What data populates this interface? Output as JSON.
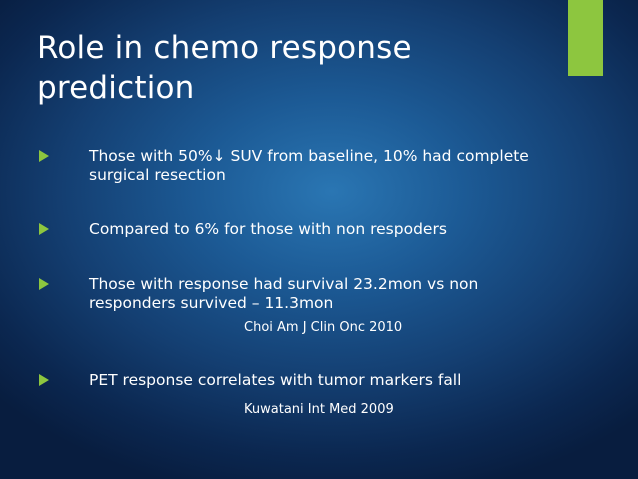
{
  "slide": {
    "title": "Role in chemo response prediction",
    "accent_color": "#8dc63f",
    "bullet_icon": "green-triangle-arrow-icon",
    "bullets": [
      {
        "text": "Those with 50%↓ SUV from baseline, 10% had complete surgical resection"
      },
      {
        "text": "Compared to 6% for those with non respoders"
      },
      {
        "text": "Those with response had survival 23.2mon vs non responders survived – 11.3mon"
      },
      {
        "text": "PET response correlates with tumor markers fall"
      }
    ],
    "citations": [
      {
        "text": "Choi Am J Clin Onc 2010"
      },
      {
        "text": "Kuwatani Int Med 2009"
      }
    ]
  }
}
